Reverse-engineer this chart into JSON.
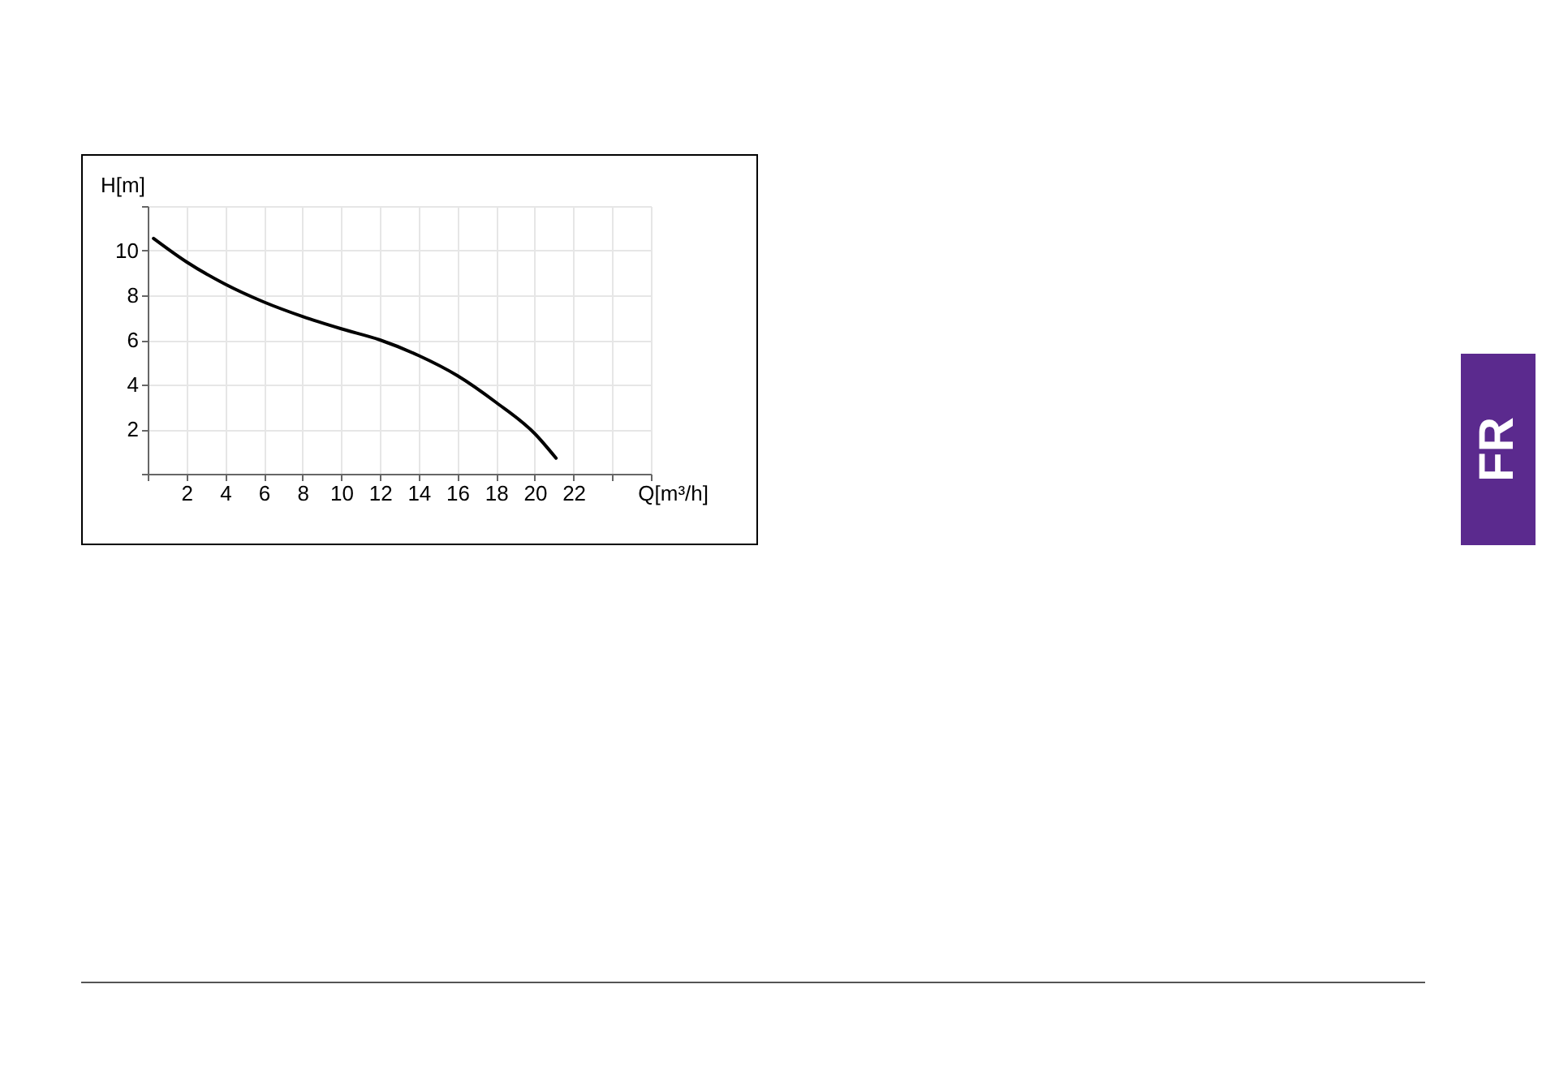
{
  "chart_data": {
    "type": "line",
    "xlabel": "Q[m³/h]",
    "ylabel": "H[m]",
    "x": [
      0.3,
      2,
      4,
      6,
      8,
      10,
      12,
      14,
      16,
      18,
      20,
      21.1
    ],
    "series": [
      {
        "color": "#000000",
        "values": [
          10.55,
          9.5,
          8.5,
          7.7,
          7.05,
          6.5,
          6.0,
          5.3,
          4.4,
          3.2,
          1.8,
          0.7
        ]
      }
    ],
    "xlim": [
      0,
      26
    ],
    "xticks": [
      {
        "value": 0,
        "label": null
      },
      2,
      4,
      6,
      8,
      10,
      12,
      14,
      16,
      18,
      20,
      22,
      {
        "value": 24,
        "label": null
      },
      {
        "value": 26,
        "label": null
      }
    ],
    "ylim": [
      0,
      12
    ],
    "yticks": [
      {
        "value": 0,
        "label": null
      },
      2,
      4,
      6,
      8,
      10,
      {
        "value": 12,
        "label": null
      }
    ],
    "grid": true,
    "marker": "none",
    "line_style": "solid",
    "annotations": [
      "FR"
    ]
  }
}
